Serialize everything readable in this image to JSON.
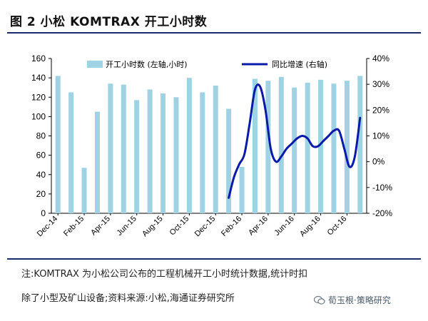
{
  "header": {
    "title": "图 2 小松 KOMTRAX 开工小时数"
  },
  "chart_data": {
    "type": "bar+line",
    "categories": [
      "Dec-14",
      "Jan-15",
      "Feb-15",
      "Mar-15",
      "Apr-15",
      "May-15",
      "Jun-15",
      "Jul-15",
      "Aug-15",
      "Sep-15",
      "Oct-15",
      "Nov-15",
      "Dec-15",
      "Jan-16",
      "Feb-16",
      "Mar-16",
      "Apr-16",
      "May-16",
      "Jun-16",
      "Jul-16",
      "Aug-16",
      "Sep-16",
      "Oct-16",
      "Nov-16"
    ],
    "x_tick_labels": [
      "Dec-14",
      "Feb-15",
      "Apr-15",
      "Jun-15",
      "Aug-15",
      "Oct-15",
      "Dec-15",
      "Feb-16",
      "Apr-16",
      "Jun-16",
      "Aug-16",
      "Oct-16"
    ],
    "series": [
      {
        "name": "开工小时数 (左轴,小时)",
        "type": "bar",
        "axis": "left",
        "color": "#9fd3e4",
        "values": [
          142,
          125,
          47,
          105,
          134,
          133,
          117,
          128,
          124,
          120,
          140,
          125,
          132,
          108,
          48,
          139,
          137,
          141,
          130,
          135,
          138,
          134,
          137,
          142
        ]
      },
      {
        "name": "同比增速 (右轴)",
        "type": "line",
        "axis": "right",
        "color": "#0a1aa8",
        "x": [
          13.0,
          13.4,
          13.8,
          14.2,
          14.6,
          15.0,
          15.4,
          15.8,
          16.2,
          16.6,
          17.0,
          17.4,
          17.8,
          18.2,
          18.6,
          19.0,
          19.4,
          19.8,
          20.2,
          20.6,
          21.0,
          21.4,
          21.8,
          22.2,
          22.6,
          23.0
        ],
        "values": [
          -14,
          -6,
          -1,
          3,
          15,
          28,
          29,
          20,
          5,
          0,
          2,
          5,
          7,
          9,
          10,
          9,
          6,
          6,
          8,
          10,
          12,
          12,
          5,
          -2,
          2,
          17
        ]
      }
    ],
    "y_left": {
      "ticks": [
        "0",
        "20",
        "40",
        "60",
        "80",
        "100",
        "120",
        "140",
        "160"
      ],
      "min": 0,
      "max": 160
    },
    "y_right": {
      "ticks": [
        "-20%",
        "-10%",
        "0%",
        "10%",
        "20%",
        "30%",
        "40%"
      ],
      "min": -20,
      "max": 40
    },
    "legend": {
      "position": "top"
    }
  },
  "notes": {
    "line1": "注:KOMTRAX 为小松公司公布的工程机械开工小时统计数据,统计时扣",
    "line2": "除了小型及矿山设备;资料来源:小松,海通证券研究所"
  },
  "watermark": {
    "text": "荀玉根·策略研究",
    "icon": "wechat-icon"
  }
}
